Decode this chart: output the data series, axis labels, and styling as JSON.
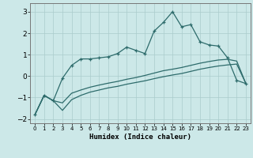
{
  "xlabel": "Humidex (Indice chaleur)",
  "background_color": "#cce8e8",
  "grid_color": "#aacccc",
  "line_color": "#2d6b6b",
  "x_values": [
    0,
    1,
    2,
    3,
    4,
    5,
    6,
    7,
    8,
    9,
    10,
    11,
    12,
    13,
    14,
    15,
    16,
    17,
    18,
    19,
    20,
    21,
    22,
    23
  ],
  "y_main": [
    -1.8,
    -0.9,
    -1.15,
    -0.1,
    0.5,
    0.8,
    0.8,
    0.85,
    0.9,
    1.05,
    1.35,
    1.2,
    1.05,
    2.1,
    2.5,
    3.0,
    2.3,
    2.4,
    1.6,
    1.45,
    1.4,
    0.85,
    -0.2,
    -0.35
  ],
  "y_lower": [
    -1.8,
    -0.9,
    -1.15,
    -1.6,
    -1.1,
    -0.9,
    -0.75,
    -0.65,
    -0.55,
    -0.48,
    -0.38,
    -0.3,
    -0.22,
    -0.12,
    -0.03,
    0.05,
    0.12,
    0.22,
    0.32,
    0.4,
    0.47,
    0.52,
    0.56,
    -0.35
  ],
  "y_middle": [
    -1.8,
    -0.9,
    -1.15,
    -1.25,
    -0.8,
    -0.65,
    -0.52,
    -0.42,
    -0.33,
    -0.25,
    -0.15,
    -0.07,
    0.03,
    0.14,
    0.25,
    0.32,
    0.4,
    0.5,
    0.6,
    0.68,
    0.75,
    0.78,
    0.7,
    -0.35
  ],
  "ylim": [
    -2.2,
    3.4
  ],
  "yticks": [
    -2,
    -1,
    0,
    1,
    2,
    3
  ],
  "xticks": [
    0,
    1,
    2,
    3,
    4,
    5,
    6,
    7,
    8,
    9,
    10,
    11,
    12,
    13,
    14,
    15,
    16,
    17,
    18,
    19,
    20,
    21,
    22,
    23
  ],
  "figwidth": 3.2,
  "figheight": 2.0,
  "dpi": 100
}
